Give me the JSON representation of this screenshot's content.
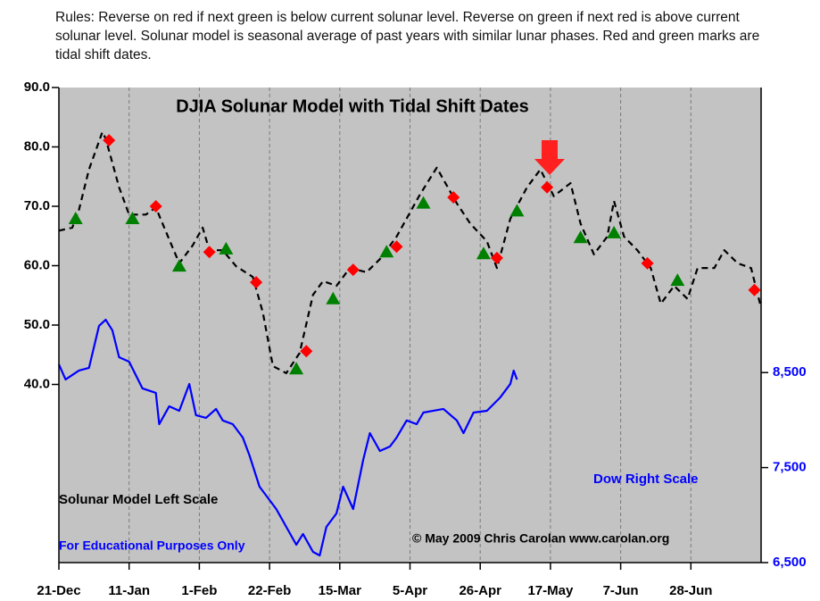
{
  "chart_data": {
    "type": "line",
    "title": "DJIA Solunar Model with Tidal Shift Dates",
    "subtitle": "Rules: Reverse on red if next green is below current solunar level. Reverse on green if next red is above current solunar level. Solunar model is seasonal average of past years with similar lunar phases. Red and green marks are tidal shift dates.",
    "annotations": [
      "For Educational Purposes Only",
      "© May 2009 Chris Carolan www.carolan.org"
    ],
    "xlim": [
      0,
      210
    ],
    "xticks": [
      {
        "value": 0,
        "label": "21-Dec"
      },
      {
        "value": 21,
        "label": "11-Jan"
      },
      {
        "value": 42,
        "label": "1-Feb"
      },
      {
        "value": 63,
        "label": "22-Feb"
      },
      {
        "value": 84,
        "label": "15-Mar"
      },
      {
        "value": 105,
        "label": "5-Apr"
      },
      {
        "value": 126,
        "label": "26-Apr"
      },
      {
        "value": 147,
        "label": "17-May"
      },
      {
        "value": 168,
        "label": "7-Jun"
      },
      {
        "value": 189,
        "label": "28-Jun"
      }
    ],
    "ylim": [
      10,
      90
    ],
    "yticks": [
      {
        "value": 40,
        "label": "40.0"
      },
      {
        "value": 50,
        "label": "50.0"
      },
      {
        "value": 60,
        "label": "60.0"
      },
      {
        "value": 70,
        "label": "70.0"
      },
      {
        "value": 80,
        "label": "80.0"
      },
      {
        "value": 90,
        "label": "90.0"
      }
    ],
    "y2lim": [
      6500,
      11500
    ],
    "y2ticks": [
      {
        "value": 6500,
        "label": "6,500"
      },
      {
        "value": 7500,
        "label": "7,500"
      },
      {
        "value": 8500,
        "label": "8,500"
      }
    ],
    "grid": true,
    "series": [
      {
        "name": "Solunar Model Left Scale",
        "color": "#000000",
        "style": "dashed",
        "x": [
          0,
          4,
          6,
          9,
          13,
          14,
          18,
          21,
          26,
          29,
          33,
          36,
          40,
          43,
          45,
          49,
          53,
          58,
          61,
          64,
          68,
          72,
          76,
          79,
          83,
          87,
          92,
          96,
          101,
          108,
          113,
          119,
          123,
          128,
          131,
          135,
          140,
          144,
          148,
          153,
          156,
          160,
          164,
          166,
          169,
          173,
          177,
          180,
          184,
          188,
          191,
          196,
          199,
          203,
          207,
          210
        ],
        "values": [
          65.9,
          66.4,
          69.4,
          76.2,
          82.5,
          81.4,
          73.2,
          68.6,
          68.6,
          69.8,
          64.4,
          60.4,
          63.4,
          66.4,
          62.6,
          62.6,
          59.9,
          58.1,
          52.1,
          43.1,
          41.9,
          45.3,
          55.1,
          57.4,
          56.6,
          59.6,
          58.9,
          61.1,
          64.9,
          72.0,
          76.5,
          70.5,
          67.1,
          64.1,
          59.6,
          67.9,
          73.2,
          76.2,
          71.7,
          73.9,
          67.1,
          61.9,
          64.9,
          70.9,
          64.9,
          62.6,
          59.6,
          53.6,
          56.6,
          54.4,
          59.6,
          59.6,
          62.6,
          60.4,
          59.6,
          52.9
        ]
      },
      {
        "name": "Dow Right Scale",
        "color": "#0000ff",
        "axis": "y2",
        "style": "solid",
        "x": [
          0,
          2,
          6,
          9,
          12,
          14,
          16,
          18,
          21,
          25,
          29,
          30,
          33,
          36,
          39,
          41,
          44,
          47,
          49,
          52,
          55,
          57,
          60,
          63,
          65,
          68,
          71,
          73,
          76,
          78,
          80,
          83,
          85,
          88,
          91,
          93,
          96,
          99,
          101,
          104,
          107,
          109,
          112,
          115,
          119,
          121,
          124,
          128,
          132,
          135,
          136,
          137
        ],
        "values": [
          8586,
          8427,
          8521,
          8549,
          8991,
          9056,
          8944,
          8662,
          8615,
          8333,
          8286,
          7957,
          8145,
          8098,
          8380,
          8051,
          8023,
          8117,
          7996,
          7957,
          7816,
          7628,
          7299,
          7158,
          7064,
          6876,
          6688,
          6801,
          6613,
          6575,
          6876,
          7017,
          7299,
          7064,
          7581,
          7863,
          7675,
          7722,
          7816,
          7996,
          7957,
          8079,
          8098,
          8117,
          7996,
          7863,
          8079,
          8098,
          8239,
          8380,
          8521,
          8427
        ]
      },
      {
        "marker": "diamond",
        "color": "#ff0000",
        "x": [
          15,
          29,
          45,
          59,
          74,
          88,
          101,
          118,
          131,
          146,
          176,
          208
        ],
        "values": [
          81.1,
          70.0,
          62.3,
          57.2,
          45.6,
          59.3,
          63.2,
          71.5,
          61.3,
          73.2,
          60.4,
          55.9
        ]
      },
      {
        "marker": "triangle",
        "color": "#008000",
        "x": [
          5,
          22,
          36,
          50,
          71,
          82,
          98,
          109,
          127,
          137,
          156,
          166,
          185
        ],
        "values": [
          67.9,
          67.9,
          59.9,
          62.8,
          42.6,
          54.4,
          62.3,
          70.5,
          62.0,
          69.2,
          64.7,
          65.5,
          57.5
        ]
      }
    ]
  }
}
